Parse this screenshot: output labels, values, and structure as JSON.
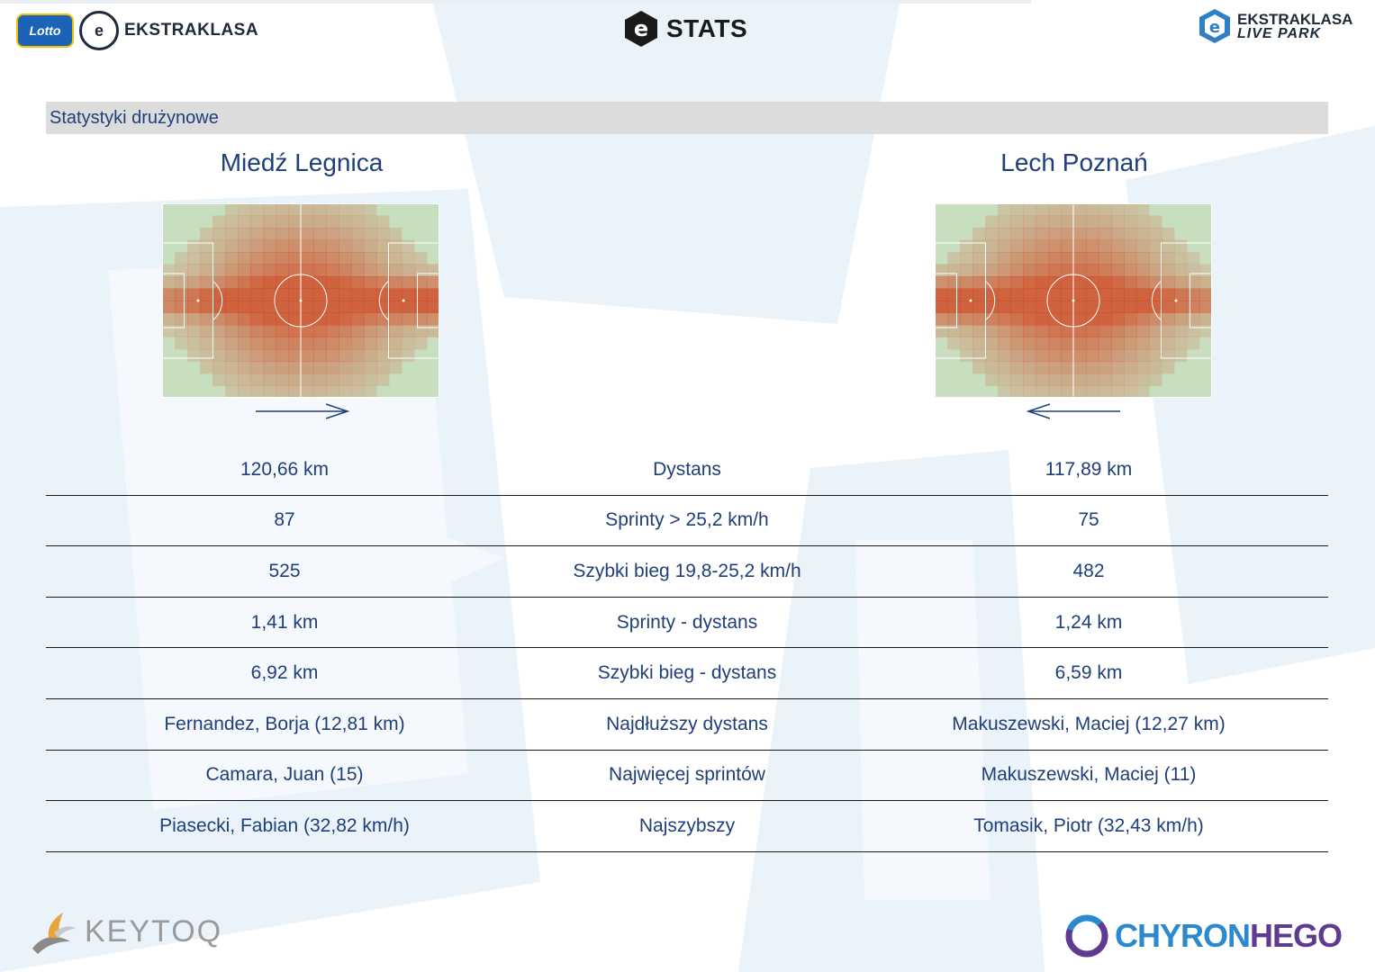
{
  "header": {
    "left_logo_badge": "Lotto",
    "left_logo_ball": "e",
    "left_logo_text": "EKSTRAKLASA",
    "center_logo_text": "STATS",
    "right_logo_line1": "EKSTRAKLASA",
    "right_logo_line2": "LIVE PARK"
  },
  "section": {
    "title": "Statystyki drużynowe"
  },
  "teams": {
    "home": {
      "name": "Miedź Legnica",
      "attack_direction": "right"
    },
    "away": {
      "name": "Lech Poznań",
      "attack_direction": "left"
    }
  },
  "stats_rows": [
    {
      "home": "120,66 km",
      "label": "Dystans",
      "away": "117,89 km"
    },
    {
      "home": "87",
      "label": "Sprinty > 25,2 km/h",
      "away": "75"
    },
    {
      "home": "525",
      "label": "Szybki bieg 19,8-25,2 km/h",
      "away": "482"
    },
    {
      "home": "1,41 km",
      "label": "Sprinty - dystans",
      "away": "1,24 km"
    },
    {
      "home": "6,92 km",
      "label": "Szybki bieg - dystans",
      "away": "6,59 km"
    },
    {
      "home": "Fernandez, Borja (12,81 km)",
      "label": "Najdłuższy dystans",
      "away": "Makuszewski, Maciej (12,27 km)"
    },
    {
      "home": "Camara, Juan (15)",
      "label": "Najwięcej sprintów",
      "away": "Makuszewski, Maciej (11)"
    },
    {
      "home": "Piasecki, Fabian (32,82 km/h)",
      "label": "Najszybszy",
      "away": "Tomasik, Piotr (32,43 km/h)"
    }
  ],
  "footer": {
    "left_logo_text": "KEYTOQ",
    "right_logo_text_a": "CHYRON",
    "right_logo_text_b": "HEGO"
  },
  "colors": {
    "text_blue": "#1f3f7a",
    "pitch_green": "#c8dfbf",
    "heat_red": "#d23a14",
    "section_gray": "#dcdcdc"
  }
}
